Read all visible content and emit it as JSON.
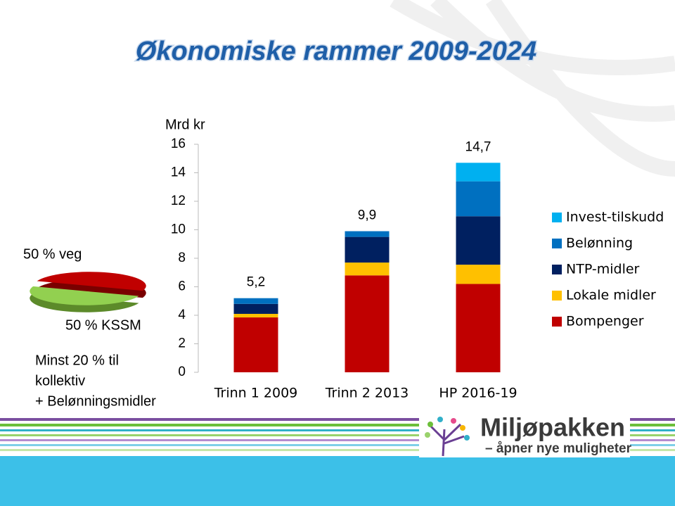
{
  "chart_data": [
    {
      "type": "bar",
      "stacked": true,
      "title": "Økonomiske rammer 2009-2024",
      "y_label": "Mrd kr",
      "categories": [
        "Trinn 1 2009",
        "Trinn 2 2013",
        "HP 2016-19"
      ],
      "series": [
        {
          "name": "Bompenger",
          "color": "#c00000",
          "values": [
            3.85,
            6.8,
            6.2
          ]
        },
        {
          "name": "Lokale midler",
          "color": "#ffc000",
          "values": [
            0.25,
            0.9,
            1.35
          ]
        },
        {
          "name": "NTP-midler",
          "color": "#002060",
          "values": [
            0.7,
            1.8,
            3.4
          ]
        },
        {
          "name": "Belønning",
          "color": "#0070c0",
          "values": [
            0.4,
            0.4,
            2.45
          ]
        },
        {
          "name": "Invest-tilskudd",
          "color": "#00b0f0",
          "values": [
            0,
            0,
            1.3
          ]
        }
      ],
      "totals": {
        "values": [
          5.2,
          9.9,
          14.7
        ],
        "value_labels": [
          "5,2",
          "9,9",
          "14,7"
        ]
      },
      "ylim": [
        0,
        16
      ],
      "yticks": [
        0,
        2,
        4,
        6,
        8,
        10,
        12,
        14,
        16
      ],
      "legend": "right"
    },
    {
      "type": "pie",
      "values": [
        50,
        50
      ],
      "value_labels": [
        "50 % veg",
        "50 % KSSM"
      ],
      "colors": [
        "#c00000",
        "#92d050"
      ]
    }
  ],
  "notes": [
    "Minst 20 % til",
    "kollektiv",
    "+ Belønningsmidler"
  ],
  "logo": {
    "name": "Miljøpakken",
    "tagline": "– åpner nye muligheter"
  }
}
